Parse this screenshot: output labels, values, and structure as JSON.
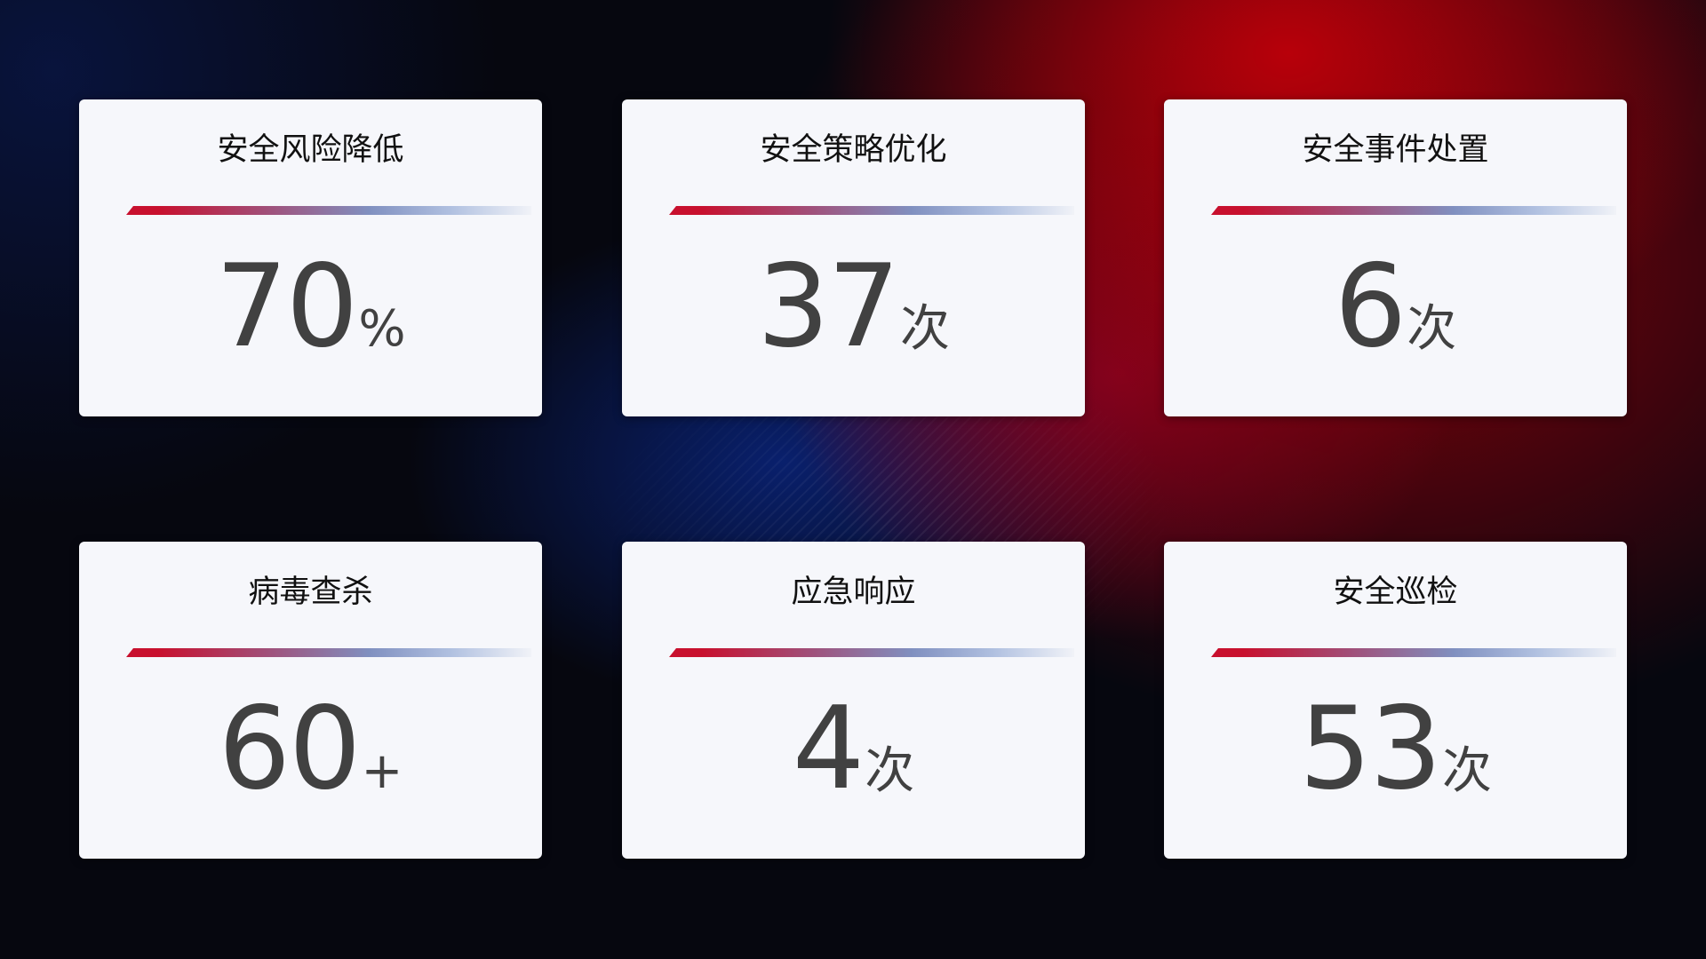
{
  "cards": [
    {
      "title": "安全风险降低",
      "value": "70",
      "unit": "%"
    },
    {
      "title": "安全策略优化",
      "value": "37",
      "unit": "次"
    },
    {
      "title": "安全事件处置",
      "value": "6",
      "unit": "次"
    },
    {
      "title": "病毒查杀",
      "value": "60",
      "unit": "+"
    },
    {
      "title": "应急响应",
      "value": "4",
      "unit": "次"
    },
    {
      "title": "安全巡检",
      "value": "53",
      "unit": "次"
    }
  ],
  "colors": {
    "accent_red": "#c8102e",
    "accent_blue": "#8090c0",
    "card_bg": "#f6f7fb",
    "value_text": "#414141"
  }
}
